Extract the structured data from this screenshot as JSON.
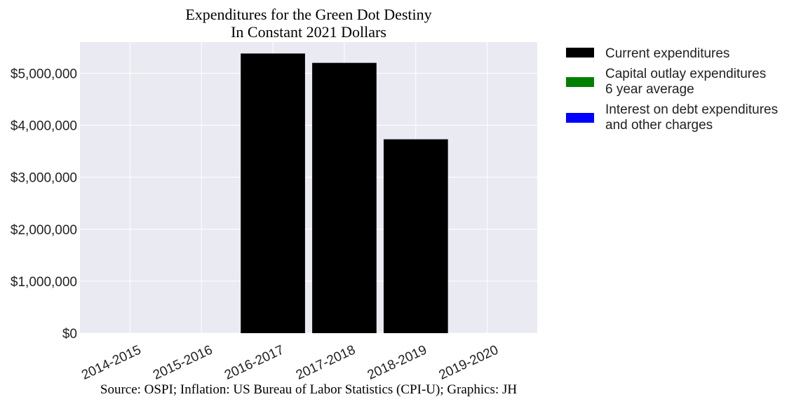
{
  "chart_data": {
    "type": "bar",
    "title": "Expenditures for the Green Dot Destiny",
    "subtitle": "In Constant 2021 Dollars",
    "xlabel": "",
    "ylabel": "",
    "categories": [
      "2014-2015",
      "2015-2016",
      "2016-2017",
      "2017-2018",
      "2018-2019",
      "2019-2020"
    ],
    "series": [
      {
        "name": "Current expenditures",
        "color": "#000000",
        "values": [
          0,
          0,
          5380000,
          5200000,
          3730000,
          0
        ]
      },
      {
        "name": "Capital outlay expenditures\n6 year average",
        "color": "#008000",
        "values": [
          0,
          0,
          0,
          0,
          0,
          0
        ]
      },
      {
        "name": "Interest on debt expenditures\nand other charges",
        "color": "#0000ff",
        "values": [
          0,
          0,
          0,
          0,
          0,
          0
        ]
      }
    ],
    "ylim": [
      0,
      5600000
    ],
    "yticks": [
      0,
      1000000,
      2000000,
      3000000,
      4000000,
      5000000
    ],
    "ytick_labels": [
      "$0",
      "$1,000,000",
      "$2,000,000",
      "$3,000,000",
      "$4,000,000",
      "$5,000,000"
    ],
    "grid": true,
    "legend_position": "outside-right",
    "background": "#eaeaf2"
  },
  "legend": {
    "items": [
      {
        "line1": "Current expenditures",
        "line2": ""
      },
      {
        "line1": "Capital outlay expenditures",
        "line2": "6 year average"
      },
      {
        "line1": "Interest on debt expenditures",
        "line2": "and other charges"
      }
    ]
  },
  "source": "Source: OSPI; Inflation: US Bureau of Labor Statistics (CPI-U); Graphics: JH"
}
